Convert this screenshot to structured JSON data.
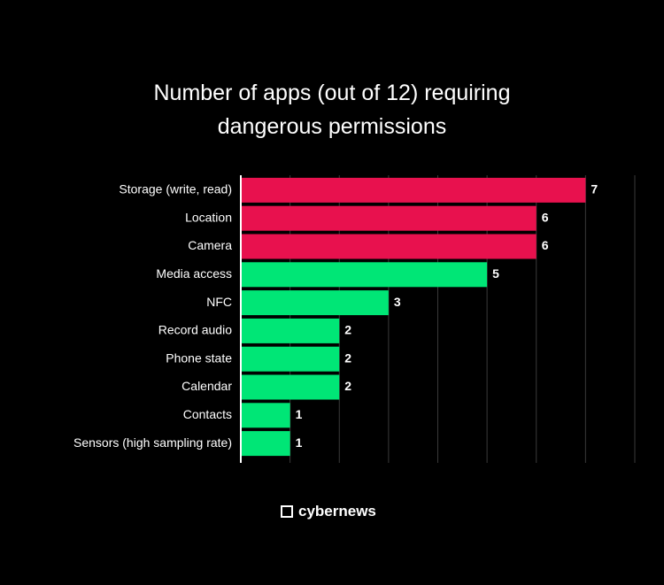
{
  "chart_data": {
    "type": "barh",
    "title": "Number of apps (out of 12) requiring dangerous permissions",
    "categories": [
      "Storage (write, read)",
      "Location",
      "Camera",
      "Media access",
      "NFC",
      "Record audio",
      "Phone state",
      "Calendar",
      "Contacts",
      "Sensors (high sampling rate)"
    ],
    "values": [
      7,
      6,
      6,
      5,
      3,
      2,
      2,
      2,
      1,
      1
    ],
    "colors": [
      "#e8114e",
      "#e8114e",
      "#e8114e",
      "#00e676",
      "#00e676",
      "#00e676",
      "#00e676",
      "#00e676",
      "#00e676",
      "#00e676"
    ],
    "xlim": [
      0,
      8
    ],
    "xticks": [
      1,
      2,
      3,
      4,
      5,
      6,
      7,
      8
    ],
    "grid": true
  },
  "footer": {
    "brand": "cybernews"
  }
}
